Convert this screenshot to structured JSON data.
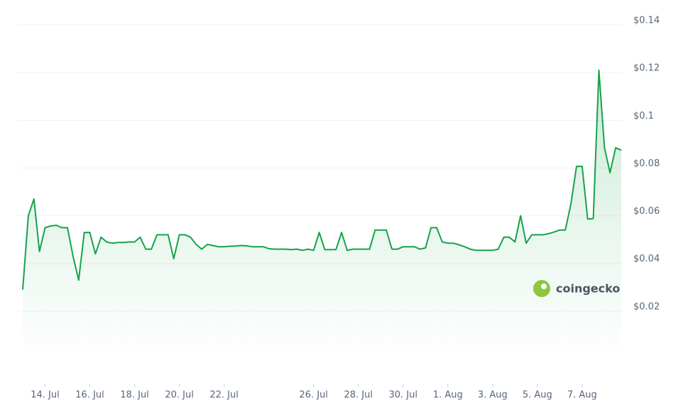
{
  "chart_data": {
    "type": "area",
    "watermark": "coingecko",
    "color": "#16a34a",
    "grid": true,
    "ylim": [
      0,
      0.14
    ],
    "yticks": [
      {
        "value": 0.02,
        "label": "$0.02"
      },
      {
        "value": 0.04,
        "label": "$0.04"
      },
      {
        "value": 0.06,
        "label": "$0.06"
      },
      {
        "value": 0.08,
        "label": "$0.08"
      },
      {
        "value": 0.1,
        "label": "$0.1"
      },
      {
        "value": 0.12,
        "label": "$0.12"
      },
      {
        "value": 0.14,
        "label": "$0.14"
      }
    ],
    "categories": [
      null,
      null,
      null,
      null,
      "14. Jul",
      null,
      null,
      null,
      null,
      null,
      null,
      null,
      "16. Jul",
      null,
      null,
      null,
      null,
      null,
      null,
      null,
      "18. Jul",
      null,
      null,
      null,
      null,
      null,
      null,
      null,
      "20. Jul",
      null,
      null,
      null,
      null,
      null,
      null,
      null,
      "22. Jul",
      null,
      null,
      null,
      null,
      null,
      null,
      null,
      null,
      null,
      null,
      null,
      null,
      null,
      null,
      null,
      "26. Jul",
      null,
      null,
      null,
      null,
      null,
      null,
      null,
      "28. Jul",
      null,
      null,
      null,
      null,
      null,
      null,
      null,
      "30. Jul",
      null,
      null,
      null,
      null,
      null,
      null,
      null,
      "1. Aug",
      null,
      null,
      null,
      null,
      null,
      null,
      null,
      "3. Aug",
      null,
      null,
      null,
      null,
      null,
      null,
      null,
      "5. Aug",
      null,
      null,
      null,
      null,
      null,
      null,
      null,
      "7. Aug",
      null,
      null,
      null,
      null,
      null,
      null,
      null
    ],
    "values": [
      0.029,
      0.06,
      0.067,
      0.045,
      0.055,
      0.0557,
      0.056,
      0.055,
      0.055,
      0.043,
      0.033,
      0.053,
      0.053,
      0.044,
      0.051,
      0.049,
      0.0485,
      0.0488,
      0.0488,
      0.049,
      0.049,
      0.051,
      0.046,
      0.046,
      0.052,
      0.052,
      0.052,
      0.042,
      0.052,
      0.052,
      0.051,
      0.048,
      0.046,
      0.048,
      0.0475,
      0.047,
      0.047,
      0.0472,
      0.0473,
      0.0475,
      0.0474,
      0.047,
      0.047,
      0.047,
      0.0462,
      0.046,
      0.046,
      0.046,
      0.0458,
      0.046,
      0.0455,
      0.046,
      0.0455,
      0.053,
      0.0458,
      0.0458,
      0.0458,
      0.053,
      0.0455,
      0.046,
      0.046,
      0.046,
      0.046,
      0.054,
      0.054,
      0.054,
      0.046,
      0.046,
      0.047,
      0.047,
      0.047,
      0.046,
      0.0465,
      0.055,
      0.055,
      0.049,
      0.0485,
      0.0485,
      0.0478,
      0.047,
      0.046,
      0.0455,
      0.0455,
      0.0455,
      0.0455,
      0.046,
      0.051,
      0.051,
      0.049,
      0.06,
      0.0485,
      0.052,
      0.052,
      0.052,
      0.0525,
      0.0532,
      0.054,
      0.054,
      0.065,
      0.0807,
      0.0807,
      0.0586,
      0.0588,
      0.121,
      0.0884,
      0.078,
      0.0885,
      0.0875
    ]
  }
}
